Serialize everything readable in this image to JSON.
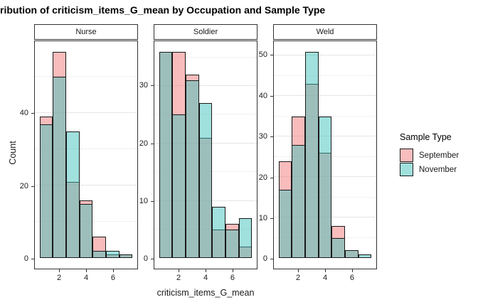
{
  "title": "ribution of criticism_items_G_mean by Occupation and Sample Type",
  "axes": {
    "x_title": "criticism_items_G_mean",
    "y_title": "Count",
    "x_ticks": [
      2,
      4,
      6
    ],
    "x_domain": [
      0.15,
      7.85
    ]
  },
  "legend": {
    "title": "Sample Type",
    "items": [
      {
        "label": "September",
        "color": "#F9BDBD"
      },
      {
        "label": "November",
        "color": "#A0E0DD"
      }
    ]
  },
  "colors": {
    "september_fill": "rgba(243,121,121,0.5)",
    "november_fill": "rgba(65,194,188,0.5)",
    "bar_border": "#1a1a1a",
    "panel_border": "#333333",
    "grid_major": "#E5E5E5",
    "grid_minor": "#F1F1F1"
  },
  "chart_data": {
    "type": "bar",
    "subtype": "overlaid-histogram-faceted",
    "title": "ribution of criticism_items_G_mean by Occupation and Sample Type",
    "xlabel": "criticism_items_G_mean",
    "ylabel": "Count",
    "grid": "horizontal-only",
    "legend_position": "right",
    "bin_centers": [
      1,
      2,
      3,
      4,
      5,
      6,
      7
    ],
    "bin_width": 1,
    "x_ticks": [
      2,
      4,
      6
    ],
    "facets": [
      {
        "label": "Nurse",
        "y_max_data": 57,
        "y_major_ticks": [
          0,
          20,
          40
        ],
        "y_minor_gridlines": [
          10,
          30,
          50
        ],
        "series": [
          {
            "name": "September",
            "values": [
              39,
              57,
              21,
              16,
              6,
              1,
              1
            ]
          },
          {
            "name": "November",
            "values": [
              37,
              50,
              35,
              15,
              2,
              2,
              1
            ]
          }
        ]
      },
      {
        "label": "Soldier",
        "y_max_data": 36,
        "y_major_ticks": [
          0,
          10,
          20,
          30
        ],
        "y_minor_gridlines": [
          5,
          15,
          25,
          35
        ],
        "series": [
          {
            "name": "September",
            "values": [
              36,
              36,
              32,
              21,
              5,
              6,
              2
            ]
          },
          {
            "name": "November",
            "values": [
              36,
              25,
              31,
              27,
              9,
              5,
              7
            ]
          }
        ]
      },
      {
        "label": "Weld",
        "y_max_data": 51,
        "y_major_ticks": [
          0,
          10,
          20,
          30,
          40,
          50
        ],
        "y_minor_gridlines": [
          5,
          15,
          25,
          35,
          45
        ],
        "series": [
          {
            "name": "September",
            "values": [
              24,
              35,
              43,
              26,
              8,
              2,
              0
            ]
          },
          {
            "name": "November",
            "values": [
              17,
              28,
              51,
              35,
              5,
              2,
              1
            ]
          }
        ]
      }
    ]
  }
}
